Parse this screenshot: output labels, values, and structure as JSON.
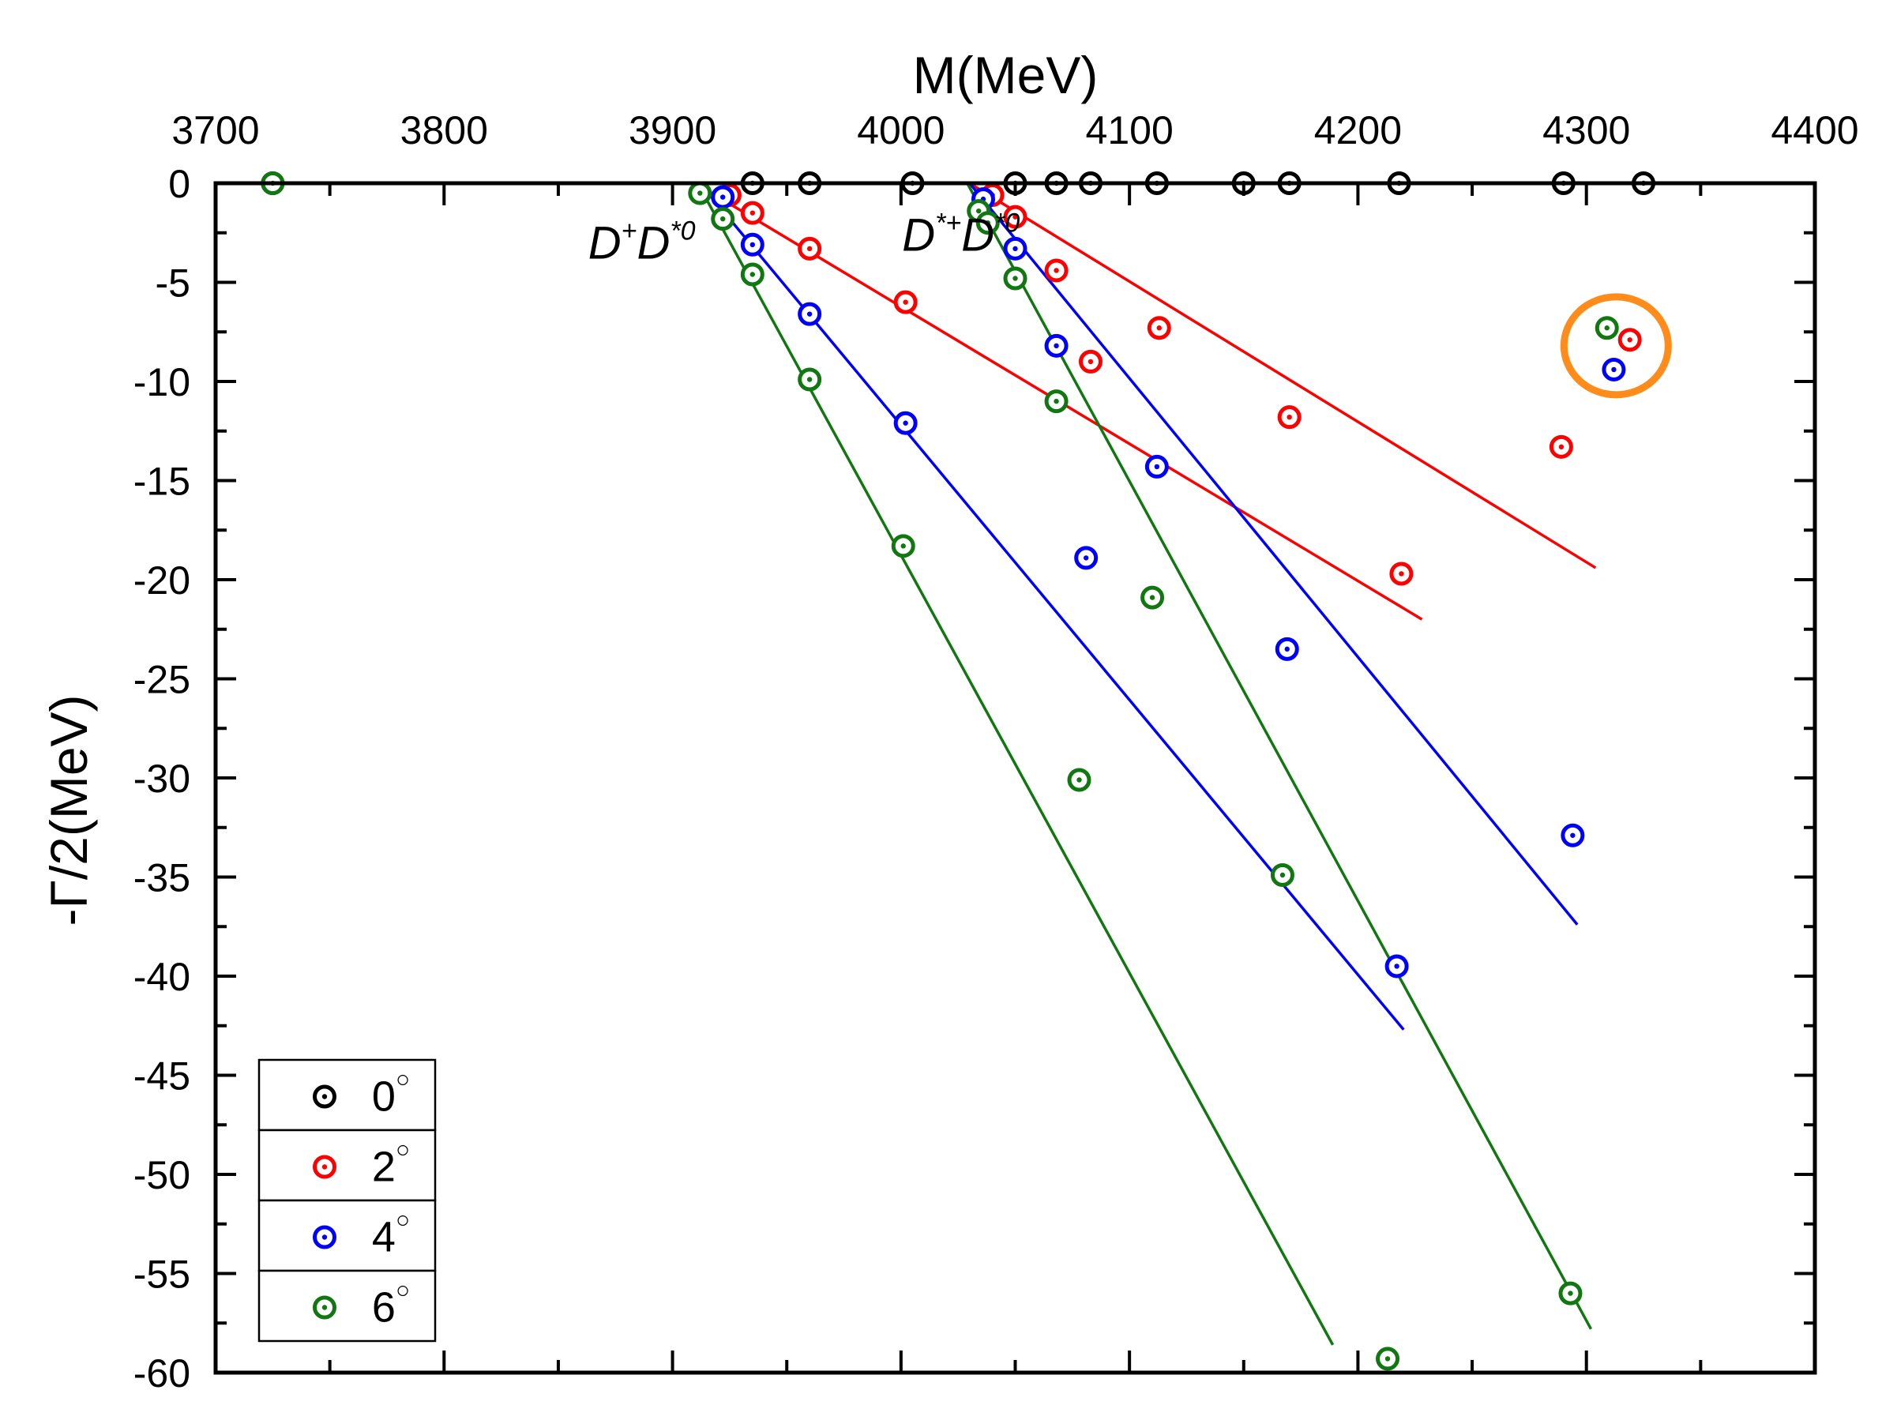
{
  "chart_data": {
    "type": "scatter",
    "xlabel": "M(MeV)",
    "ylabel": "-Γ/2(MeV)",
    "xlim": [
      3700,
      4400
    ],
    "ylim": [
      -60,
      0
    ],
    "x_ticks": [
      "3700",
      "3800",
      "3900",
      "4000",
      "4100",
      "4200",
      "4300",
      "4400"
    ],
    "y_ticks": [
      "0",
      "-5",
      "-10",
      "-15",
      "-20",
      "-25",
      "-30",
      "-35",
      "-40",
      "-45",
      "-50",
      "-55",
      "-60"
    ],
    "x_axis_position": "top",
    "grid": false,
    "legend_position": "bottom-left",
    "annotations": [
      {
        "base": "D",
        "sup1": "+",
        "mid": "D",
        "sup2": "*0",
        "x": 3910,
        "y": -3.0
      },
      {
        "base": "D",
        "sup1": "*+",
        "mid": "D",
        "sup2": "*0",
        "x": 4052,
        "y": -2.6
      }
    ],
    "highlight_circle": {
      "x": 4313,
      "y": -8.2,
      "color": "#ff8c1a"
    },
    "series": [
      {
        "name": "0°",
        "label": "0",
        "sup": "○",
        "color": "#000000",
        "points": [
          [
            3725,
            0
          ],
          [
            3935,
            0
          ],
          [
            3960,
            0
          ],
          [
            4005,
            0
          ],
          [
            4050,
            0
          ],
          [
            4068,
            0
          ],
          [
            4083,
            0
          ],
          [
            4112,
            0
          ],
          [
            4150,
            0
          ],
          [
            4170,
            0
          ],
          [
            4218,
            0
          ],
          [
            4290,
            0
          ],
          [
            4325,
            0
          ]
        ]
      },
      {
        "name": "2°",
        "label": "2",
        "sup": "○",
        "color": "#ff0000",
        "points": [
          [
            3925,
            -0.6
          ],
          [
            3935,
            -1.5
          ],
          [
            3960,
            -3.3
          ],
          [
            4002,
            -6.0
          ],
          [
            4040,
            -0.6
          ],
          [
            4050,
            -1.7
          ],
          [
            4068,
            -4.4
          ],
          [
            4083,
            -9.0
          ],
          [
            4113,
            -7.3
          ],
          [
            4170,
            -11.8
          ],
          [
            4219,
            -19.7
          ],
          [
            4289,
            -13.3
          ],
          [
            4319,
            -7.9
          ]
        ],
        "fit_lines": [
          [
            [
              3910,
              0
            ],
            [
              4228,
              -22.0
            ]
          ],
          [
            [
              4030,
              0
            ],
            [
              4304,
              -19.4
            ]
          ]
        ]
      },
      {
        "name": "4°",
        "label": "4",
        "sup": "○",
        "color": "#0000ff",
        "points": [
          [
            3922,
            -0.7
          ],
          [
            3935,
            -3.1
          ],
          [
            3960,
            -6.6
          ],
          [
            4002,
            -12.1
          ],
          [
            4036,
            -0.8
          ],
          [
            4050,
            -3.3
          ],
          [
            4068,
            -8.2
          ],
          [
            4081,
            -18.9
          ],
          [
            4112,
            -14.3
          ],
          [
            4169,
            -23.5
          ],
          [
            4217,
            -39.5
          ],
          [
            4294,
            -32.9
          ],
          [
            4312,
            -9.4
          ]
        ],
        "fit_lines": [
          [
            [
              3912,
              0
            ],
            [
              4220,
              -42.7
            ]
          ],
          [
            [
              4030,
              0
            ],
            [
              4296,
              -37.4
            ]
          ]
        ]
      },
      {
        "name": "6°",
        "label": "6",
        "sup": "○",
        "color": "#117711",
        "points": [
          [
            3725,
            0
          ],
          [
            3912,
            -0.5
          ],
          [
            3922,
            -1.8
          ],
          [
            3935,
            -4.6
          ],
          [
            3960,
            -9.9
          ],
          [
            4001,
            -18.3
          ],
          [
            4034,
            -1.4
          ],
          [
            4038,
            -2.0
          ],
          [
            4050,
            -4.8
          ],
          [
            4068,
            -11.0
          ],
          [
            4078,
            -30.1
          ],
          [
            4110,
            -20.9
          ],
          [
            4167,
            -34.9
          ],
          [
            4213,
            -59.3
          ],
          [
            4293,
            -56.0
          ],
          [
            4309,
            -7.3
          ]
        ],
        "fit_lines": [
          [
            [
              3911,
              0
            ],
            [
              4189,
              -58.6
            ]
          ],
          [
            [
              4029,
              0
            ],
            [
              4302,
              -57.8
            ]
          ]
        ]
      }
    ]
  }
}
